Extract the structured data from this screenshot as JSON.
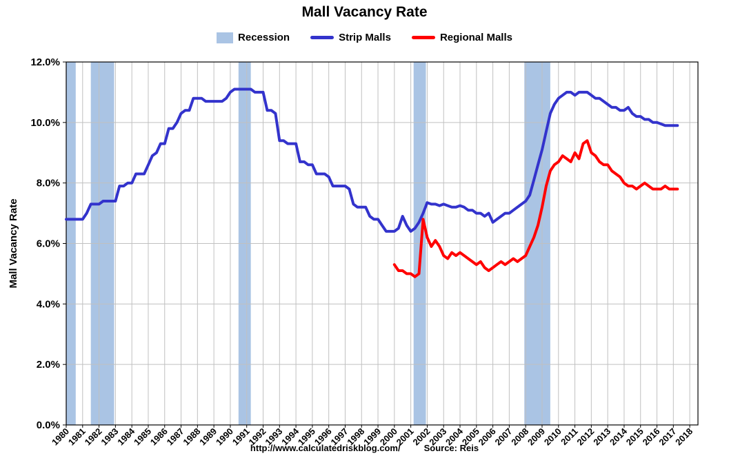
{
  "footer": {
    "url": "http://www.calculatedriskblog.com/",
    "source": "Source: Reis"
  },
  "chart_data": {
    "type": "line",
    "title": "Mall Vacancy Rate",
    "ylabel": "Mall Vacancy Rate",
    "xlabel": "",
    "ylim": [
      0,
      12
    ],
    "xlim": [
      1980,
      2018.5
    ],
    "y_ticks": [
      0,
      2,
      4,
      6,
      8,
      10,
      12
    ],
    "x_ticks": [
      1980,
      1981,
      1982,
      1983,
      1984,
      1985,
      1986,
      1987,
      1988,
      1989,
      1990,
      1991,
      1992,
      1993,
      1994,
      1995,
      1996,
      1997,
      1998,
      1999,
      2000,
      2001,
      2002,
      2003,
      2004,
      2005,
      2006,
      2007,
      2008,
      2009,
      2010,
      2011,
      2012,
      2013,
      2014,
      2015,
      2016,
      2017,
      2018
    ],
    "grid": true,
    "legend_position": "top",
    "recession_label": "Recession",
    "recessions": [
      [
        1980.0,
        1980.58
      ],
      [
        1981.5,
        1982.92
      ],
      [
        1990.5,
        1991.25
      ],
      [
        2001.17,
        2001.92
      ],
      [
        2007.92,
        2009.5
      ]
    ],
    "colors": {
      "recession": "#aac4e4",
      "grid": "#c0c0c0",
      "axis": "#000000"
    },
    "series": [
      {
        "name": "Strip Malls",
        "color": "#3333cc",
        "period": "quarterly",
        "start_year": 1980,
        "values": [
          6.8,
          6.8,
          6.8,
          6.8,
          6.8,
          7.0,
          7.3,
          7.3,
          7.3,
          7.4,
          7.4,
          7.4,
          7.4,
          7.9,
          7.9,
          8.0,
          8.0,
          8.3,
          8.3,
          8.3,
          8.6,
          8.9,
          9.0,
          9.3,
          9.3,
          9.8,
          9.8,
          10.0,
          10.3,
          10.4,
          10.4,
          10.8,
          10.8,
          10.8,
          10.7,
          10.7,
          10.7,
          10.7,
          10.7,
          10.8,
          11.0,
          11.1,
          11.1,
          11.1,
          11.1,
          11.1,
          11.0,
          11.0,
          11.0,
          10.4,
          10.4,
          10.3,
          9.4,
          9.4,
          9.3,
          9.3,
          9.3,
          8.7,
          8.7,
          8.6,
          8.6,
          8.3,
          8.3,
          8.3,
          8.2,
          7.9,
          7.9,
          7.9,
          7.9,
          7.8,
          7.3,
          7.2,
          7.2,
          7.2,
          6.9,
          6.8,
          6.8,
          6.6,
          6.4,
          6.4,
          6.4,
          6.5,
          6.9,
          6.6,
          6.4,
          6.5,
          6.7,
          7.0,
          7.35,
          7.3,
          7.3,
          7.25,
          7.3,
          7.25,
          7.2,
          7.2,
          7.25,
          7.2,
          7.1,
          7.1,
          7.0,
          7.0,
          6.9,
          7.0,
          6.7,
          6.8,
          6.9,
          7.0,
          7.0,
          7.1,
          7.2,
          7.3,
          7.4,
          7.6,
          8.1,
          8.6,
          9.1,
          9.7,
          10.3,
          10.6,
          10.8,
          10.9,
          11.0,
          11.0,
          10.9,
          11.0,
          11.0,
          11.0,
          10.9,
          10.8,
          10.8,
          10.7,
          10.6,
          10.5,
          10.5,
          10.4,
          10.4,
          10.5,
          10.3,
          10.2,
          10.2,
          10.1,
          10.1,
          10.0,
          10.0,
          9.95,
          9.9,
          9.9,
          9.9,
          9.9
        ]
      },
      {
        "name": "Regional Malls",
        "color": "#ff0000",
        "period": "quarterly",
        "start_year": 2000,
        "values": [
          5.3,
          5.1,
          5.1,
          5.0,
          5.0,
          4.9,
          5.0,
          6.8,
          6.2,
          5.9,
          6.1,
          5.9,
          5.6,
          5.5,
          5.7,
          5.6,
          5.7,
          5.6,
          5.5,
          5.4,
          5.3,
          5.4,
          5.2,
          5.1,
          5.2,
          5.3,
          5.4,
          5.3,
          5.4,
          5.5,
          5.4,
          5.5,
          5.6,
          5.9,
          6.2,
          6.6,
          7.2,
          7.9,
          8.4,
          8.6,
          8.7,
          8.9,
          8.8,
          8.7,
          9.0,
          8.8,
          9.3,
          9.4,
          9.0,
          8.9,
          8.7,
          8.6,
          8.6,
          8.4,
          8.3,
          8.2,
          8.0,
          7.9,
          7.9,
          7.8,
          7.9,
          8.0,
          7.9,
          7.8,
          7.8,
          7.8,
          7.9,
          7.8,
          7.8,
          7.8
        ]
      }
    ]
  }
}
